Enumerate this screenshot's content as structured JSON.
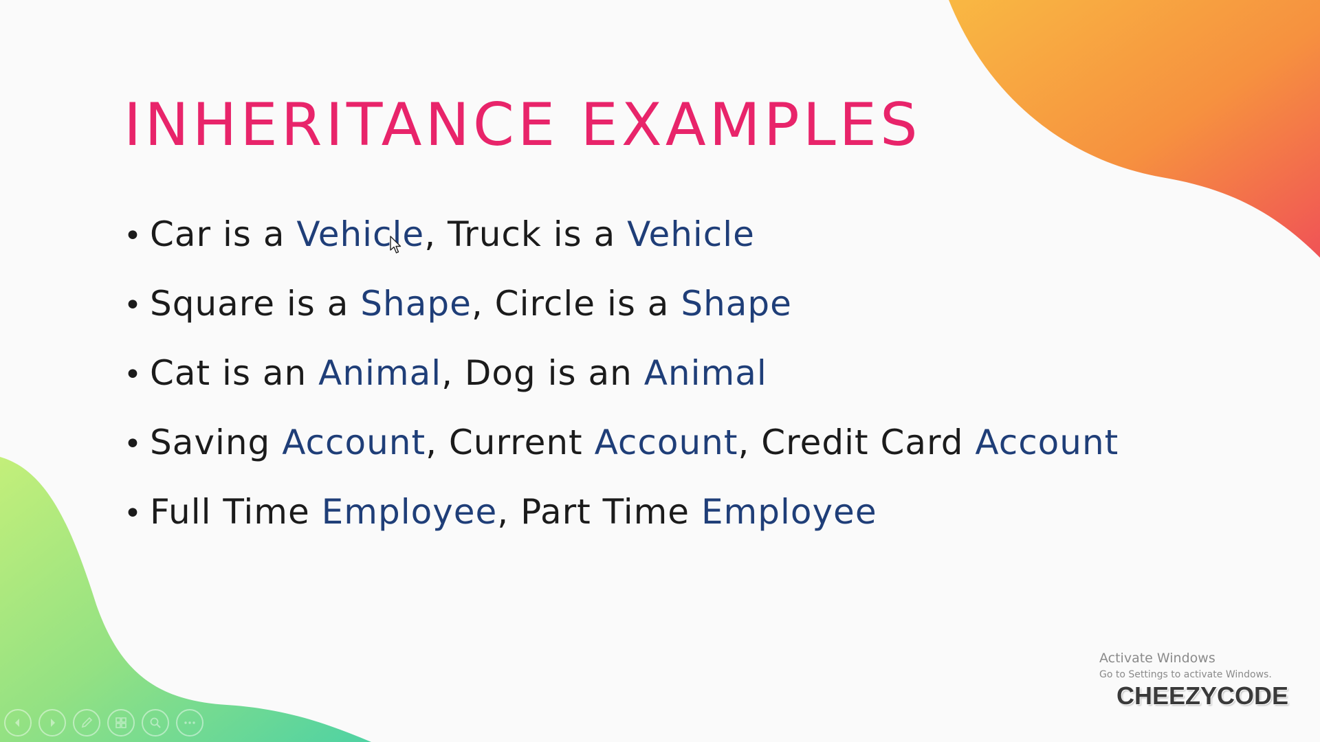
{
  "slide": {
    "title": "INHERITANCE EXAMPLES",
    "bullets": [
      {
        "parts": [
          "Car is a ",
          "Vehicle",
          ", Truck is a ",
          "Vehicle"
        ]
      },
      {
        "parts": [
          "Square is a ",
          "Shape",
          ", Circle is a ",
          "Shape"
        ]
      },
      {
        "parts": [
          "Cat is an ",
          "Animal",
          ", Dog is an ",
          "Animal"
        ]
      },
      {
        "parts": [
          "Saving ",
          "Account",
          ", Current ",
          "Account",
          ", Credit Card ",
          "Account"
        ]
      },
      {
        "parts": [
          "Full Time ",
          "Employee",
          ", Part Time ",
          "Employee"
        ]
      }
    ],
    "colors": {
      "title": "#e8246a",
      "body_text": "#1b1b1b",
      "highlight": "#1f3e78",
      "blob_orange": "#f7a840",
      "blob_red": "#f25a5a",
      "blob_green": "#a8e87a",
      "blob_teal": "#5fd6a0"
    }
  },
  "watermark": {
    "title": "Activate Windows",
    "subtitle": "Go to Settings to activate Windows."
  },
  "brand": "CHEEZYCODE",
  "toolbar": {
    "icons": [
      "previous-icon",
      "next-icon",
      "pen-icon",
      "slides-grid-icon",
      "zoom-icon",
      "more-icon"
    ]
  }
}
